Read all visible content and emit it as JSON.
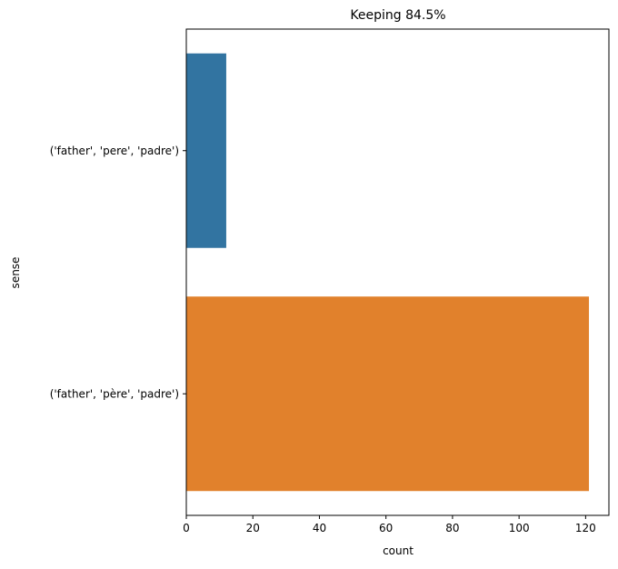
{
  "chart_data": {
    "type": "bar",
    "orientation": "horizontal",
    "title": "Keeping 84.5%",
    "xlabel": "count",
    "ylabel": "sense",
    "categories": [
      "('father', 'pere', 'padre')",
      "('father', 'père', 'padre')"
    ],
    "values": [
      12,
      121
    ],
    "colors": [
      "#3274a1",
      "#e1812c"
    ],
    "xlim": [
      0,
      127
    ],
    "xticks": [
      0,
      20,
      40,
      60,
      80,
      100,
      120
    ],
    "grid": false,
    "legend": "none"
  }
}
